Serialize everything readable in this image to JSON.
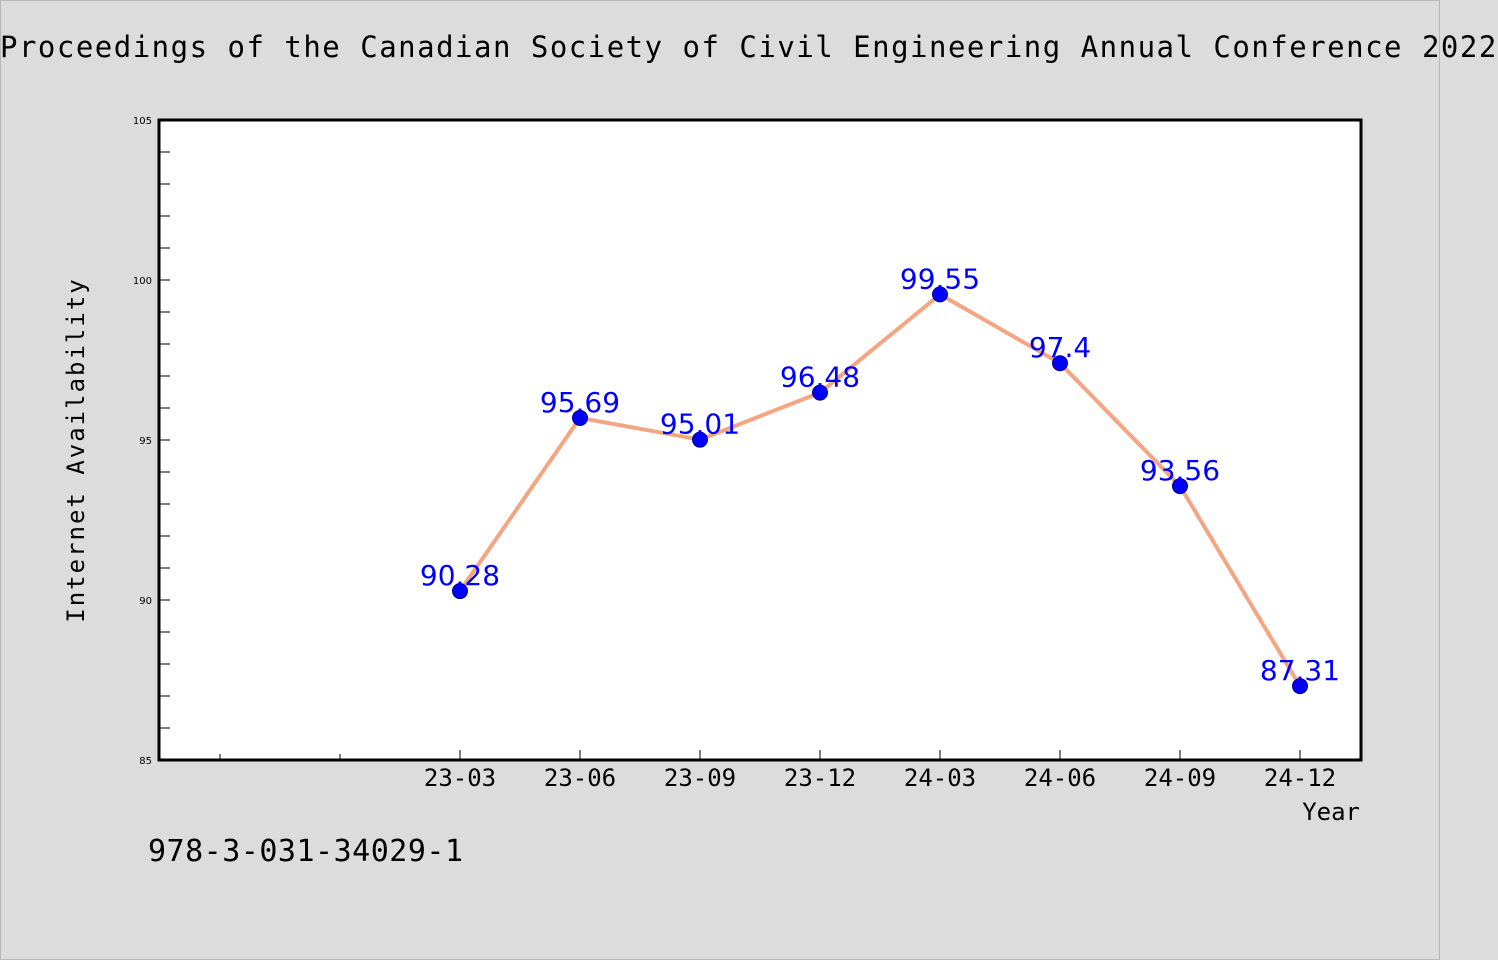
{
  "header": {
    "title": "Proceedings of the Canadian Society of Civil Engineering Annual Conference 2022"
  },
  "footer": {
    "isbn": "978-3-031-34029-1"
  },
  "colors": {
    "background": "#dcdcdc",
    "plot_background": "#ffffff",
    "line": "#f4a582",
    "marker": "#0000ff",
    "data_label": "#0000ff"
  },
  "chart_data": {
    "type": "line",
    "title": "",
    "xlabel": "Year",
    "ylabel": "Internet Availability",
    "categories": [
      "23-03",
      "23-06",
      "23-09",
      "23-12",
      "24-03",
      "24-06",
      "24-09",
      "24-12"
    ],
    "values": [
      90.28,
      95.69,
      95.01,
      96.48,
      99.55,
      97.4,
      93.56,
      87.31
    ],
    "data_labels": [
      "90.28",
      "95.69",
      "95.01",
      "96.48",
      "99.55",
      "97.4",
      "93.56",
      "87.31"
    ],
    "ylim": [
      85,
      105
    ],
    "yticks": [
      "85",
      "90",
      "95",
      "100",
      "105"
    ],
    "grid": false,
    "legend": "none"
  }
}
